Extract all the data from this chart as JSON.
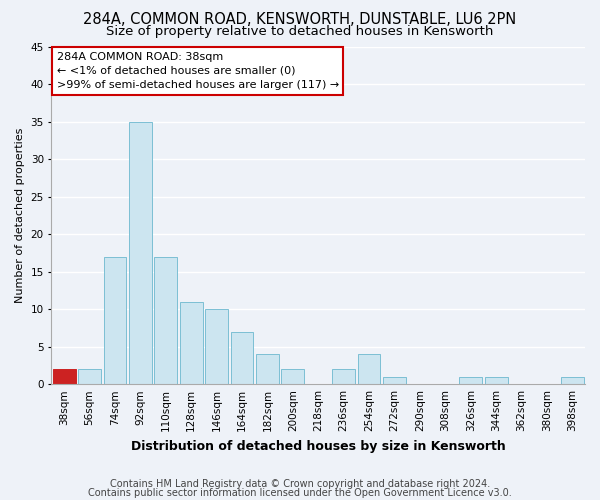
{
  "title": "284A, COMMON ROAD, KENSWORTH, DUNSTABLE, LU6 2PN",
  "subtitle": "Size of property relative to detached houses in Kensworth",
  "xlabel": "Distribution of detached houses by size in Kensworth",
  "ylabel": "Number of detached properties",
  "categories": [
    "38sqm",
    "56sqm",
    "74sqm",
    "92sqm",
    "110sqm",
    "128sqm",
    "146sqm",
    "164sqm",
    "182sqm",
    "200sqm",
    "218sqm",
    "236sqm",
    "254sqm",
    "272sqm",
    "290sqm",
    "308sqm",
    "326sqm",
    "344sqm",
    "362sqm",
    "380sqm",
    "398sqm"
  ],
  "values": [
    2,
    2,
    17,
    35,
    17,
    11,
    10,
    7,
    4,
    2,
    0,
    2,
    4,
    1,
    0,
    0,
    1,
    1,
    0,
    0,
    1
  ],
  "bar_color": "#cce5f0",
  "bar_edge_color": "#7bbfd4",
  "highlight_bar_index": 0,
  "highlight_color": "#cc2222",
  "highlight_edge_color": "#cc2222",
  "annotation_title": "284A COMMON ROAD: 38sqm",
  "annotation_line1": "← <1% of detached houses are smaller (0)",
  "annotation_line2": ">99% of semi-detached houses are larger (117) →",
  "annotation_box_color": "#ffffff",
  "annotation_box_edge": "#cc0000",
  "ylim": [
    0,
    45
  ],
  "yticks": [
    0,
    5,
    10,
    15,
    20,
    25,
    30,
    35,
    40,
    45
  ],
  "footer_line1": "Contains HM Land Registry data © Crown copyright and database right 2024.",
  "footer_line2": "Contains public sector information licensed under the Open Government Licence v3.0.",
  "background_color": "#eef2f8",
  "grid_color": "#ffffff",
  "title_fontsize": 10.5,
  "subtitle_fontsize": 9.5,
  "xlabel_fontsize": 9,
  "ylabel_fontsize": 8,
  "tick_fontsize": 7.5,
  "annotation_fontsize": 8,
  "footer_fontsize": 7
}
